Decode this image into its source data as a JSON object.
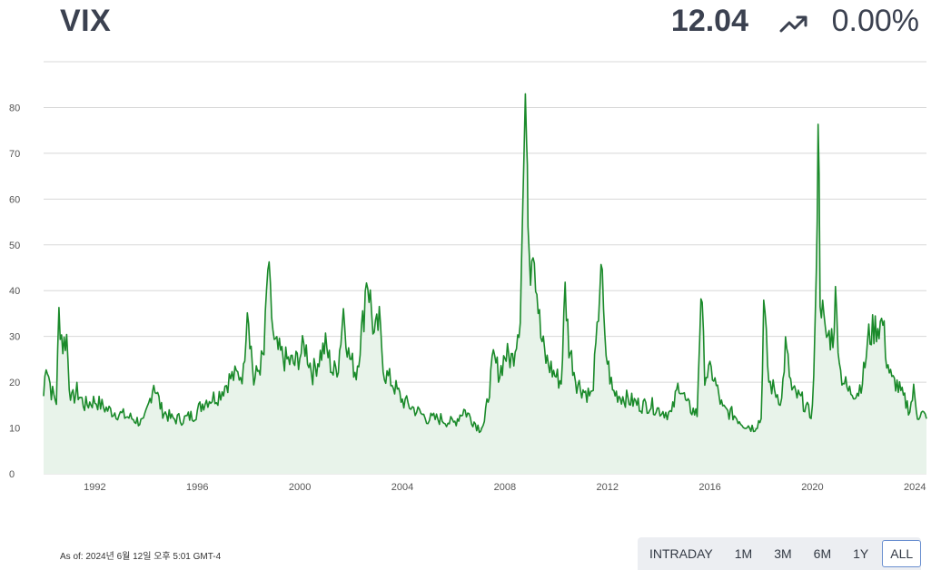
{
  "header": {
    "title": "VIX",
    "price": "12.04",
    "change": "0.00%",
    "trend_icon": "trending-up-icon"
  },
  "footer": {
    "as_of": "As of: 2024년 6월 12일 오후 5:01 GMT-4"
  },
  "ranges": {
    "items": [
      "INTRADAY",
      "1M",
      "3M",
      "6M",
      "1Y",
      "ALL"
    ],
    "selected": "ALL"
  },
  "colors": {
    "line": "#1a8a2a",
    "fill": "#e8f3ea",
    "grid": "#d8d8d8",
    "text": "#333a45"
  },
  "chart_data": {
    "type": "area",
    "title": "",
    "xlabel": "",
    "ylabel": "",
    "xlim": [
      1990.0,
      2024.45
    ],
    "ylim": [
      0,
      90
    ],
    "yticks": [
      0,
      10,
      20,
      30,
      40,
      50,
      60,
      70,
      80
    ],
    "xticks": [
      1992,
      1996,
      2000,
      2004,
      2008,
      2012,
      2016,
      2020,
      2024
    ],
    "grid": true,
    "series": [
      {
        "x": [
          1990.0,
          1990.1,
          1990.3,
          1990.5,
          1990.6,
          1990.75,
          1990.9,
          1991.0,
          1991.1,
          1991.3,
          1991.6,
          1992.0,
          1992.5,
          1993.0,
          1993.5,
          1993.9,
          1994.1,
          1994.3,
          1994.6,
          1995.0,
          1995.5,
          1995.9,
          1996.3,
          1996.8,
          1997.3,
          1997.8,
          1997.95,
          1998.2,
          1998.6,
          1998.75,
          1999.0,
          1999.4,
          1999.8,
          2000.2,
          2000.5,
          2000.8,
          2001.0,
          2001.3,
          2001.5,
          2001.7,
          2001.9,
          2002.2,
          2002.5,
          2002.6,
          2002.75,
          2002.9,
          2003.1,
          2003.3,
          2003.6,
          2004.0,
          2004.5,
          2005.0,
          2005.5,
          2006.0,
          2006.4,
          2006.7,
          2007.0,
          2007.2,
          2007.55,
          2007.8,
          2008.0,
          2008.3,
          2008.6,
          2008.75,
          2008.85,
          2008.9,
          2009.0,
          2009.1,
          2009.25,
          2009.4,
          2009.6,
          2009.9,
          2010.2,
          2010.35,
          2010.5,
          2010.8,
          2011.1,
          2011.4,
          2011.6,
          2011.75,
          2011.9,
          2012.2,
          2012.5,
          2012.9,
          2013.3,
          2013.7,
          2014.0,
          2014.5,
          2014.8,
          2015.1,
          2015.5,
          2015.65,
          2015.8,
          2016.1,
          2016.5,
          2016.9,
          2017.3,
          2017.7,
          2018.0,
          2018.1,
          2018.3,
          2018.8,
          2018.95,
          2019.2,
          2019.6,
          2019.9,
          2020.0,
          2020.15,
          2020.22,
          2020.3,
          2020.5,
          2020.8,
          2020.9,
          2021.1,
          2021.4,
          2021.8,
          2022.0,
          2022.2,
          2022.45,
          2022.75,
          2022.9,
          2023.1,
          2023.25,
          2023.5,
          2023.8,
          2023.95,
          2024.1,
          2024.3,
          2024.45
        ],
        "y": [
          17,
          25,
          18,
          16,
          35,
          28,
          30,
          20,
          16,
          18,
          15,
          16,
          14,
          13,
          12,
          11,
          15,
          20,
          14,
          12,
          12,
          13,
          16,
          17,
          21,
          22,
          38,
          20,
          26,
          45,
          28,
          25,
          24,
          28,
          22,
          26,
          28,
          22,
          24,
          36,
          26,
          22,
          35,
          44,
          38,
          30,
          33,
          22,
          20,
          16,
          14,
          12,
          12,
          11,
          14,
          12,
          10,
          11,
          25,
          22,
          26,
          25,
          35,
          70,
          80,
          60,
          45,
          52,
          40,
          30,
          25,
          22,
          20,
          40,
          28,
          20,
          18,
          17,
          30,
          47,
          28,
          18,
          17,
          16,
          15,
          15,
          14,
          13,
          20,
          15,
          13,
          40,
          22,
          22,
          14,
          13,
          11,
          10,
          12,
          37,
          20,
          16,
          28,
          18,
          16,
          13,
          14,
          40,
          82,
          40,
          30,
          30,
          38,
          22,
          18,
          18,
          22,
          30,
          32,
          33,
          25,
          20,
          20,
          17,
          14,
          18,
          13,
          13,
          12.04
        ]
      }
    ]
  }
}
